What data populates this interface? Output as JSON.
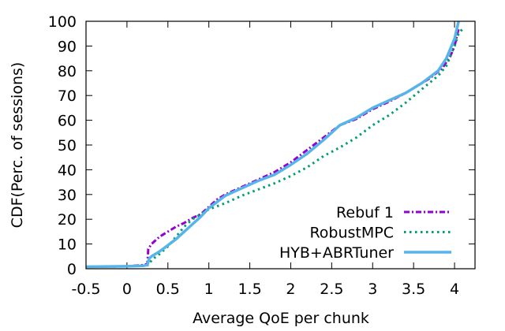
{
  "chart_data": {
    "type": "line",
    "xlabel": "Average QoE per chunk",
    "ylabel": "CDF(Perc. of sessions)",
    "xlim": [
      -0.5,
      4.25
    ],
    "ylim": [
      0,
      100
    ],
    "xticks": [
      "-0.5",
      "0",
      "0.5",
      "1",
      "1.5",
      "2",
      "2.5",
      "3",
      "3.5",
      "4"
    ],
    "yticks": [
      "0",
      "10",
      "20",
      "30",
      "40",
      "50",
      "60",
      "70",
      "80",
      "90",
      "100"
    ],
    "grid": false,
    "legend_position": "bottom-right",
    "series": [
      {
        "name": "Rebuf 1",
        "color": "#9400d3",
        "style": "dash-dot",
        "points": [
          [
            -0.5,
            0.8
          ],
          [
            0,
            1
          ],
          [
            0.2,
            1.5
          ],
          [
            0.25,
            2
          ],
          [
            0.26,
            8
          ],
          [
            0.3,
            10
          ],
          [
            0.4,
            13
          ],
          [
            0.5,
            15
          ],
          [
            0.6,
            17
          ],
          [
            0.7,
            18.5
          ],
          [
            0.8,
            20.5
          ],
          [
            0.9,
            22
          ],
          [
            1.0,
            25
          ],
          [
            1.1,
            28
          ],
          [
            1.2,
            30
          ],
          [
            1.4,
            33
          ],
          [
            1.6,
            36
          ],
          [
            1.8,
            39
          ],
          [
            2.0,
            43
          ],
          [
            2.2,
            48
          ],
          [
            2.4,
            53
          ],
          [
            2.6,
            58
          ],
          [
            2.8,
            60.5
          ],
          [
            3.0,
            64.5
          ],
          [
            3.2,
            67.5
          ],
          [
            3.4,
            71
          ],
          [
            3.55,
            74
          ],
          [
            3.7,
            77
          ],
          [
            3.85,
            81
          ],
          [
            3.95,
            86
          ],
          [
            4.0,
            90
          ],
          [
            4.05,
            97
          ]
        ]
      },
      {
        "name": "RobustMPC",
        "color": "#009e73",
        "style": "dotted",
        "points": [
          [
            -0.5,
            0.8
          ],
          [
            0,
            1
          ],
          [
            0.2,
            1.2
          ],
          [
            0.27,
            1.5
          ],
          [
            0.3,
            3.5
          ],
          [
            0.4,
            6
          ],
          [
            0.5,
            9
          ],
          [
            0.6,
            13
          ],
          [
            0.7,
            17
          ],
          [
            0.8,
            20
          ],
          [
            0.9,
            22
          ],
          [
            1.0,
            24
          ],
          [
            1.2,
            26.5
          ],
          [
            1.4,
            29.5
          ],
          [
            1.6,
            32
          ],
          [
            1.8,
            34.5
          ],
          [
            2.0,
            37.5
          ],
          [
            2.2,
            41
          ],
          [
            2.4,
            45.5
          ],
          [
            2.6,
            49
          ],
          [
            2.8,
            53
          ],
          [
            3.0,
            58
          ],
          [
            3.2,
            62
          ],
          [
            3.4,
            67
          ],
          [
            3.6,
            72.5
          ],
          [
            3.8,
            78
          ],
          [
            3.9,
            82
          ],
          [
            4.0,
            90
          ],
          [
            4.05,
            95
          ],
          [
            4.1,
            97
          ]
        ]
      },
      {
        "name": "HYB+ABRTuner",
        "color": "#56b4e9",
        "style": "solid",
        "points": [
          [
            -0.5,
            0.8
          ],
          [
            0,
            1
          ],
          [
            0.2,
            1.2
          ],
          [
            0.25,
            1.5
          ],
          [
            0.27,
            4
          ],
          [
            0.3,
            5
          ],
          [
            0.4,
            7
          ],
          [
            0.5,
            9.5
          ],
          [
            0.6,
            12
          ],
          [
            0.7,
            15
          ],
          [
            0.8,
            18
          ],
          [
            0.9,
            21
          ],
          [
            1.0,
            24.5
          ],
          [
            1.1,
            27
          ],
          [
            1.2,
            29.5
          ],
          [
            1.4,
            32.5
          ],
          [
            1.6,
            35.5
          ],
          [
            1.8,
            38
          ],
          [
            2.0,
            42
          ],
          [
            2.2,
            46.5
          ],
          [
            2.4,
            52
          ],
          [
            2.6,
            58
          ],
          [
            2.8,
            61
          ],
          [
            3.0,
            65
          ],
          [
            3.2,
            68
          ],
          [
            3.4,
            71
          ],
          [
            3.6,
            75
          ],
          [
            3.8,
            80
          ],
          [
            3.9,
            85
          ],
          [
            3.95,
            89
          ],
          [
            4.0,
            93
          ],
          [
            4.05,
            100
          ]
        ]
      }
    ]
  }
}
